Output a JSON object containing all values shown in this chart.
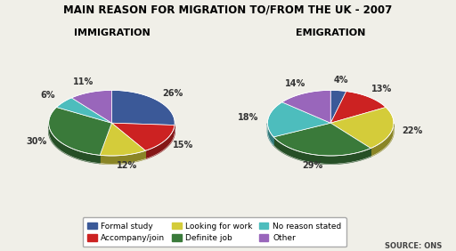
{
  "title": "MAIN REASON FOR MIGRATION TO/FROM THE UK - 2007",
  "immigration_title": "IMMIGRATION",
  "emigration_title": "EMIGRATION",
  "source": "SOURCE: ONS",
  "colors": [
    "#3b5998",
    "#cc2222",
    "#d4cc3a",
    "#3a7a3a",
    "#4dbdbd",
    "#9966bb"
  ],
  "immigration_values": [
    26,
    15,
    12,
    30,
    6,
    11
  ],
  "emigration_values": [
    4,
    13,
    22,
    29,
    18,
    14
  ],
  "immigration_labels": [
    "26%",
    "15%",
    "12%",
    "30%",
    "6%",
    "11%"
  ],
  "emigration_labels": [
    "4%",
    "13%",
    "22%",
    "29%",
    "18%",
    "14%"
  ],
  "bg_color": "#f0efe8",
  "legend_labels": [
    "Formal study",
    "Accompany/join",
    "Looking for work",
    "Definite job",
    "No reason stated",
    "Other"
  ],
  "legend_colors_order": [
    0,
    1,
    2,
    3,
    4,
    5
  ]
}
